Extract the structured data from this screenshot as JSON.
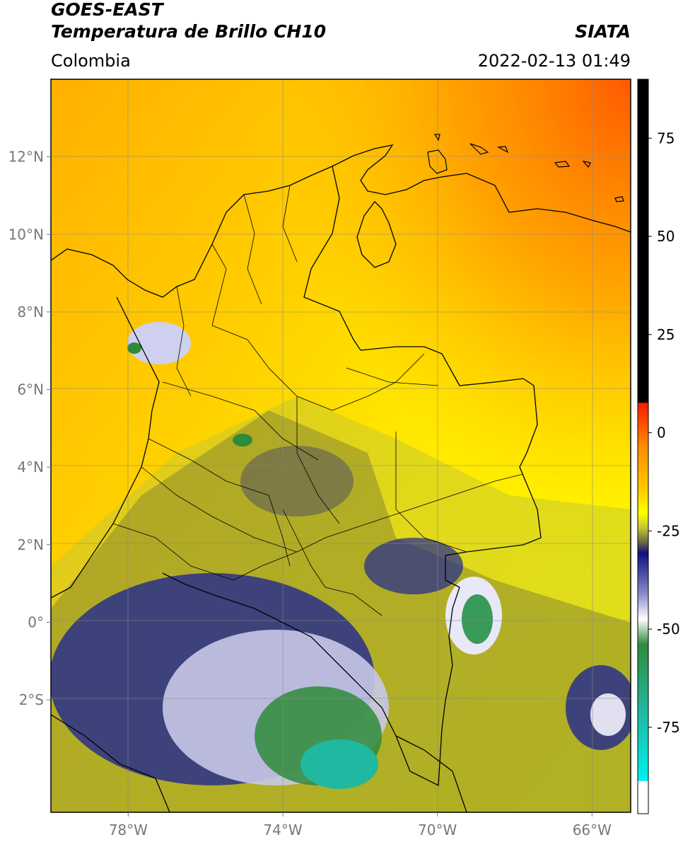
{
  "header": {
    "satellite": "GOES-EAST",
    "product": "Temperatura de Brillo CH10",
    "region": "Colombia",
    "source": "SIATA",
    "datetime": "2022-02-13 01:49"
  },
  "map": {
    "lon_range": [
      -80,
      -65
    ],
    "lat_range": [
      -4.9,
      14
    ],
    "lon_ticks": [
      {
        "value": -78,
        "label": "78°W"
      },
      {
        "value": -74,
        "label": "74°W"
      },
      {
        "value": -70,
        "label": "70°W"
      },
      {
        "value": -66,
        "label": "66°W"
      }
    ],
    "lat_ticks": [
      {
        "value": 12,
        "label": "12°N"
      },
      {
        "value": 10,
        "label": "10°N"
      },
      {
        "value": 8,
        "label": "8°N"
      },
      {
        "value": 6,
        "label": "6°N"
      },
      {
        "value": 4,
        "label": "4°N"
      },
      {
        "value": 2,
        "label": "2°N"
      },
      {
        "value": 0,
        "label": "0°"
      },
      {
        "value": -2,
        "label": "2°S"
      }
    ],
    "gridlines": true
  },
  "colorbar": {
    "range": [
      -97,
      90
    ],
    "ticks": [
      {
        "value": 75,
        "label": "75"
      },
      {
        "value": 50,
        "label": "50"
      },
      {
        "value": 25,
        "label": "25"
      },
      {
        "value": 0,
        "label": "0"
      },
      {
        "value": -25,
        "label": "-25"
      },
      {
        "value": -50,
        "label": "-50"
      },
      {
        "value": -75,
        "label": "-75"
      }
    ],
    "colors": {
      "black": "#000000",
      "red": "#ff1a00",
      "orange": "#ff8c00",
      "yellow": "#ffff00",
      "olive": "#8a8a30",
      "navy": "#101080",
      "white": "#ffffff",
      "green": "#2e8b3a",
      "teal": "#20b8a0",
      "cyan": "#00f0f0"
    }
  }
}
